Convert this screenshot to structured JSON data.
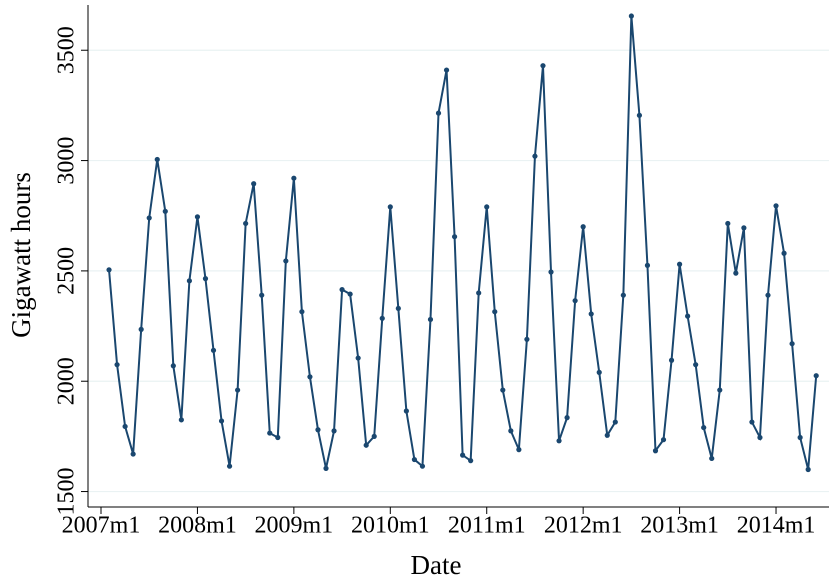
{
  "chart_data": {
    "type": "line",
    "x_label": "Date",
    "y_label": "Gigawatt hours",
    "x": [
      "2007m2",
      "2007m3",
      "2007m4",
      "2007m5",
      "2007m6",
      "2007m7",
      "2007m8",
      "2007m9",
      "2007m10",
      "2007m11",
      "2007m12",
      "2008m1",
      "2008m2",
      "2008m3",
      "2008m4",
      "2008m5",
      "2008m6",
      "2008m7",
      "2008m8",
      "2008m9",
      "2008m10",
      "2008m11",
      "2008m12",
      "2009m1",
      "2009m2",
      "2009m3",
      "2009m4",
      "2009m5",
      "2009m6",
      "2009m7",
      "2009m8",
      "2009m9",
      "2009m10",
      "2009m11",
      "2009m12",
      "2010m1",
      "2010m2",
      "2010m3",
      "2010m4",
      "2010m5",
      "2010m6",
      "2010m7",
      "2010m8",
      "2010m9",
      "2010m10",
      "2010m11",
      "2010m12",
      "2011m1",
      "2011m2",
      "2011m3",
      "2011m4",
      "2011m5",
      "2011m6",
      "2011m7",
      "2011m8",
      "2011m9",
      "2011m10",
      "2011m11",
      "2011m12",
      "2012m1",
      "2012m2",
      "2012m3",
      "2012m4",
      "2012m5",
      "2012m6",
      "2012m7",
      "2012m8",
      "2012m9",
      "2012m10",
      "2012m11",
      "2012m12",
      "2013m1",
      "2013m2",
      "2013m3",
      "2013m4",
      "2013m5",
      "2013m6",
      "2013m7",
      "2013m8",
      "2013m9",
      "2013m10",
      "2013m11",
      "2013m12",
      "2014m1",
      "2014m2",
      "2014m3",
      "2014m4",
      "2014m5",
      "2014m6"
    ],
    "series": [
      {
        "color": "#1a476f",
        "values": [
          2505,
          2075,
          1795,
          1670,
          2235,
          2740,
          3005,
          2770,
          2070,
          1825,
          2455,
          2745,
          2465,
          2140,
          1820,
          1615,
          1960,
          2715,
          2895,
          2390,
          1765,
          1745,
          2545,
          2920,
          2315,
          2020,
          1780,
          1605,
          1775,
          2415,
          2395,
          2105,
          1710,
          1750,
          2285,
          2790,
          2330,
          1865,
          1645,
          1615,
          2280,
          3215,
          3410,
          2655,
          1665,
          1640,
          2400,
          2790,
          2315,
          1960,
          1775,
          1690,
          2190,
          3020,
          3430,
          2495,
          1730,
          1835,
          2365,
          2700,
          2305,
          2040,
          1755,
          1815,
          2390,
          3655,
          3205,
          2525,
          1685,
          1735,
          2095,
          2530,
          2295,
          2075,
          1790,
          1650,
          1960,
          2715,
          2490,
          2695,
          1815,
          1745,
          2390,
          2795,
          2580,
          2170,
          1745,
          1600,
          2025
        ]
      }
    ],
    "xticks": [
      "2007m1",
      "2008m1",
      "2009m1",
      "2010m1",
      "2011m1",
      "2012m1",
      "2013m1",
      "2014m1"
    ],
    "ylim": [
      1430,
      3705
    ],
    "yticks": [
      1500,
      2000,
      2500,
      3000,
      3500
    ],
    "grid": true
  }
}
